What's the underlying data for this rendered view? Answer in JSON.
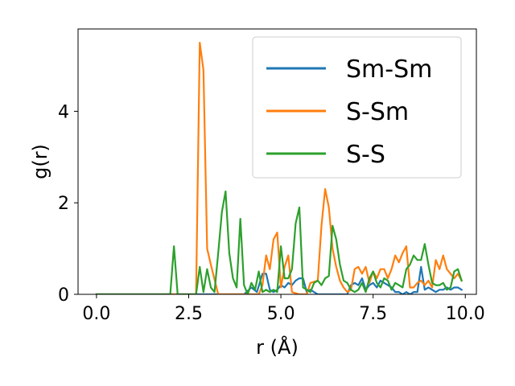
{
  "chart_data": {
    "type": "line",
    "title": "",
    "xlabel": "r (Å)",
    "ylabel": "g(r)",
    "xlim": [
      -0.5,
      10.3
    ],
    "ylim": [
      0,
      5.8
    ],
    "xticks": [
      0.0,
      2.5,
      5.0,
      7.5,
      10.0
    ],
    "xtick_labels": [
      "0.0",
      "2.5",
      "5.0",
      "7.5",
      "10.0"
    ],
    "yticks": [
      0,
      2,
      4
    ],
    "ytick_labels": [
      "0",
      "2",
      "4"
    ],
    "grid": false,
    "legend_position": "top-right",
    "series": [
      {
        "name": "Sm-Sm",
        "color": "#1f77b4",
        "x": [
          0.0,
          4.0,
          4.2,
          4.35,
          4.5,
          4.6,
          4.7,
          4.8,
          4.9,
          5.0,
          5.1,
          5.2,
          5.3,
          5.4,
          5.5,
          5.6,
          5.7,
          5.8,
          5.9,
          6.0,
          6.8,
          6.9,
          7.0,
          7.1,
          7.2,
          7.3,
          7.4,
          7.5,
          7.6,
          7.7,
          7.8,
          7.9,
          8.0,
          8.1,
          8.2,
          8.3,
          8.4,
          8.5,
          8.6,
          8.7,
          8.8,
          8.9,
          9.0,
          9.1,
          9.2,
          9.3,
          9.4,
          9.5,
          9.6,
          9.7,
          9.8,
          9.9
        ],
        "y": [
          0,
          0,
          0.15,
          0.05,
          0.45,
          0.45,
          0.1,
          0.05,
          0.1,
          0.2,
          0.15,
          0.25,
          0.2,
          0.3,
          0.35,
          0.35,
          0.05,
          0.1,
          0.05,
          0,
          0,
          0.2,
          0.25,
          0.2,
          0.35,
          0.1,
          0.2,
          0.25,
          0.15,
          0.3,
          0.25,
          0.2,
          0.15,
          0.05,
          0.05,
          0,
          0.05,
          0,
          0.05,
          0.05,
          0.6,
          0.1,
          0.15,
          0.1,
          0.05,
          0.1,
          0.1,
          0.15,
          0.1,
          0.15,
          0.15,
          0.1
        ]
      },
      {
        "name": "S-Sm",
        "color": "#ff7f0e",
        "x": [
          0.0,
          2.7,
          2.8,
          2.9,
          3.0,
          3.1,
          3.3,
          4.4,
          4.5,
          4.6,
          4.7,
          4.8,
          4.9,
          5.0,
          5.1,
          5.2,
          5.3,
          5.5,
          5.7,
          5.8,
          6.0,
          6.1,
          6.2,
          6.3,
          6.4,
          6.5,
          6.6,
          6.7,
          6.8,
          6.9,
          7.0,
          7.1,
          7.2,
          7.3,
          7.4,
          7.5,
          7.6,
          7.7,
          7.8,
          7.9,
          8.0,
          8.1,
          8.2,
          8.3,
          8.4,
          8.5,
          8.6,
          8.7,
          8.8,
          8.9,
          9.0,
          9.1,
          9.2,
          9.3,
          9.4,
          9.5,
          9.6,
          9.7,
          9.8,
          9.9
        ],
        "y": [
          0,
          0,
          5.5,
          4.9,
          1.0,
          0.65,
          0,
          0,
          0.2,
          0.85,
          0.55,
          1.2,
          1.35,
          0.15,
          0.6,
          0.85,
          0.05,
          0,
          0,
          0.25,
          0.3,
          1.5,
          2.3,
          1.9,
          1.0,
          0.6,
          0.3,
          0.15,
          0.05,
          0.1,
          0.55,
          0.6,
          0.45,
          0.6,
          0.25,
          0.5,
          0.35,
          0.55,
          0.55,
          0.35,
          0.55,
          0.85,
          0.7,
          0.9,
          1.05,
          0.15,
          0.15,
          0.25,
          0.3,
          0.2,
          0.3,
          0.15,
          0.75,
          0.55,
          0.85,
          0.55,
          0.45,
          0.35,
          0.45,
          0.3
        ]
      },
      {
        "name": "S-S",
        "color": "#2ca02c",
        "x": [
          0.0,
          2.0,
          2.1,
          2.2,
          2.7,
          2.8,
          2.9,
          3.0,
          3.1,
          3.2,
          3.3,
          3.4,
          3.5,
          3.6,
          3.7,
          3.8,
          3.9,
          4.0,
          4.1,
          4.2,
          4.3,
          4.4,
          4.5,
          4.6,
          4.7,
          4.8,
          4.9,
          5.0,
          5.1,
          5.2,
          5.3,
          5.4,
          5.5,
          5.6,
          5.7,
          5.8,
          5.9,
          6.0,
          6.1,
          6.2,
          6.3,
          6.4,
          6.5,
          6.6,
          6.7,
          6.8,
          6.9,
          7.0,
          7.1,
          7.2,
          7.3,
          7.4,
          7.5,
          7.6,
          7.7,
          7.8,
          7.9,
          8.0,
          8.1,
          8.2,
          8.3,
          8.4,
          8.5,
          8.6,
          8.7,
          8.8,
          8.9,
          9.0,
          9.1,
          9.2,
          9.3,
          9.4,
          9.5,
          9.6,
          9.7,
          9.8,
          9.9
        ],
        "y": [
          0,
          0,
          1.05,
          0,
          0,
          0.6,
          0.05,
          0.55,
          0.15,
          0.05,
          0.9,
          1.8,
          2.25,
          0.9,
          0.35,
          0.15,
          1.65,
          0.2,
          0,
          0.25,
          0.1,
          0.5,
          0.05,
          0.1,
          0.05,
          0.1,
          0.05,
          1.05,
          0.35,
          0.35,
          0.55,
          1.55,
          1.9,
          0.15,
          0.1,
          0.05,
          0.25,
          0.3,
          0.2,
          0.35,
          0.4,
          1.5,
          1.2,
          0.65,
          0.3,
          0.25,
          0.1,
          0.05,
          0.1,
          0.25,
          0.05,
          0.35,
          0.5,
          0.25,
          0.15,
          0.35,
          0.3,
          0.1,
          0.25,
          0.2,
          0.15,
          0.55,
          0.65,
          0.85,
          0.75,
          0.75,
          1.1,
          0.65,
          0.25,
          0.2,
          0.2,
          0.25,
          0.1,
          0.15,
          0.5,
          0.55,
          0.3
        ]
      }
    ]
  }
}
